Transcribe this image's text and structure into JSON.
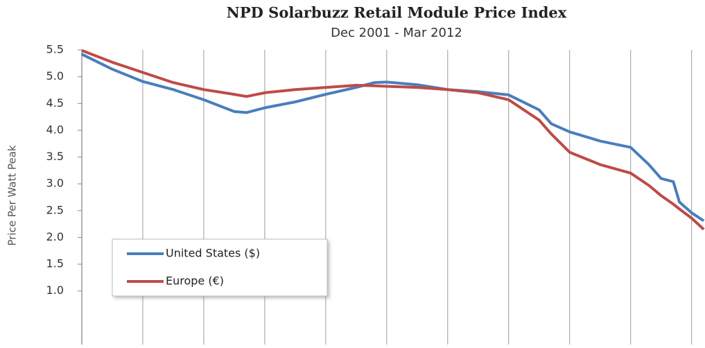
{
  "chart_data": {
    "type": "line",
    "title": "NPD Solarbuzz Retail Module Price Index",
    "subtitle": "Dec 2001 - Mar 2012",
    "y_label": "Price Per Watt Peak",
    "x": [
      2002,
      2002.5,
      2003,
      2003.5,
      2004,
      2004.5,
      2004.7,
      2005,
      2005.5,
      2006,
      2006.5,
      2006.8,
      2007,
      2007.5,
      2008,
      2008.5,
      2009,
      2009.5,
      2009.7,
      2010,
      2010.5,
      2011,
      2011.3,
      2011.5,
      2011.7,
      2011.8,
      2012,
      2012.2
    ],
    "series": [
      {
        "name": "United States ($)",
        "color": "#4a7ebb",
        "values": [
          5.42,
          5.14,
          4.91,
          4.76,
          4.57,
          4.35,
          4.33,
          4.42,
          4.53,
          4.67,
          4.8,
          4.89,
          4.9,
          4.85,
          4.76,
          4.72,
          4.66,
          4.38,
          4.12,
          3.97,
          3.8,
          3.68,
          3.36,
          3.1,
          3.04,
          2.66,
          2.46,
          2.31
        ]
      },
      {
        "name": "Europe (€)",
        "color": "#be4b48",
        "values": [
          5.49,
          5.27,
          5.08,
          4.89,
          4.76,
          4.67,
          4.63,
          4.7,
          4.76,
          4.8,
          4.84,
          4.83,
          4.82,
          4.8,
          4.76,
          4.7,
          4.57,
          4.19,
          3.93,
          3.59,
          3.36,
          3.2,
          2.97,
          2.78,
          2.62,
          2.53,
          2.36,
          2.15
        ]
      }
    ],
    "xlim": [
      2002,
      2012.22
    ],
    "xticks": [
      2003,
      2004,
      2005,
      2006,
      2007,
      2008,
      2009,
      2010,
      2011,
      2012
    ],
    "ylim": [
      0,
      5.5
    ],
    "yticks": [
      5.5,
      {
        "value": 5,
        "label": "5.0"
      },
      4.5,
      {
        "value": 4,
        "label": "4.0"
      },
      3.5,
      {
        "value": 3,
        "label": "3.0"
      },
      2.5,
      {
        "value": 2,
        "label": "2.0"
      },
      1.5,
      {
        "value": 1,
        "label": "1.0"
      }
    ],
    "grid": true,
    "legend": "bottom-left"
  }
}
